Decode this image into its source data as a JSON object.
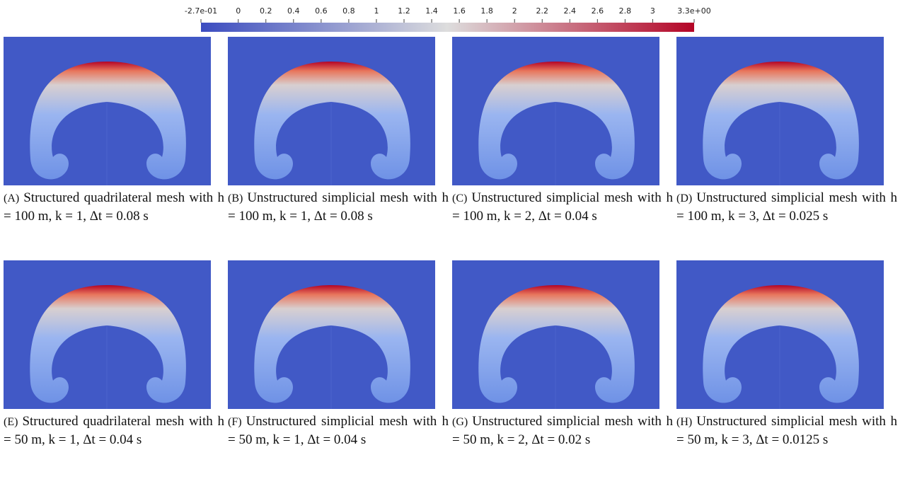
{
  "colorbar": {
    "range": [
      -0.27,
      3.3
    ],
    "ticks": [
      {
        "value": -0.27,
        "label": "-2.7e-01"
      },
      0,
      0.2,
      0.4,
      0.6,
      0.8,
      1,
      1.2,
      1.4,
      1.6,
      1.8,
      2,
      2.2,
      2.4,
      2.6,
      2.8,
      3,
      {
        "value": 3.3,
        "label": "3.3e+00"
      }
    ],
    "colors": [
      "#3b4cc0",
      "#dddddd",
      "#b40426"
    ]
  },
  "panels": [
    {
      "label": "(A)",
      "caption": "Structured quadrilateral mesh with h = 100 m, k = 1, Δt = 0.08 s"
    },
    {
      "label": "(B)",
      "caption": "Unstructured simplicial mesh with h = 100 m, k = 1, Δt = 0.08 s"
    },
    {
      "label": "(C)",
      "caption": "Unstructured simplicial mesh with h = 100 m, k = 2, Δt = 0.04 s"
    },
    {
      "label": "(D)",
      "caption": "Unstructured simplicial mesh with h = 100 m, k = 3, Δt = 0.025 s"
    },
    {
      "label": "(E)",
      "caption": "Structured quadrilateral mesh with h = 50 m, k = 1, Δt = 0.04 s"
    },
    {
      "label": "(F)",
      "caption": "Unstructured simplicial mesh with h = 50 m, k = 1, Δt = 0.04 s"
    },
    {
      "label": "(G)",
      "caption": "Unstructured simplicial mesh with h = 50 m, k = 2, Δt = 0.02 s"
    },
    {
      "label": "(H)",
      "caption": "Unstructured simplicial mesh with h = 50 m, k = 3, Δt = 0.0125 s"
    }
  ]
}
